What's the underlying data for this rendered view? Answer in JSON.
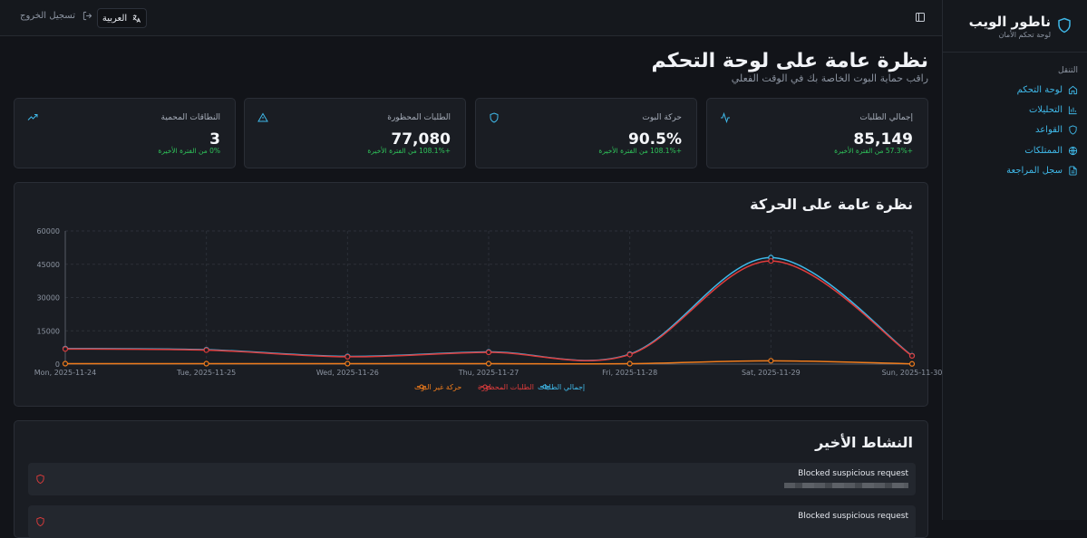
{
  "brand": {
    "title": "ناطور الويب",
    "subtitle": "لوحة تحكم الأمان"
  },
  "nav": {
    "heading": "التنقل",
    "items": [
      {
        "label": "لوحة التحكم",
        "icon": "home-icon"
      },
      {
        "label": "التحليلات",
        "icon": "chart-icon"
      },
      {
        "label": "القواعد",
        "icon": "shield-icon"
      },
      {
        "label": "الممتلكات",
        "icon": "globe-icon"
      },
      {
        "label": "سجل المراجعة",
        "icon": "file-icon"
      }
    ]
  },
  "topbar": {
    "logout_label": "تسجيل الخروج",
    "language_label": "العربية"
  },
  "header": {
    "title": "نظرة عامة على لوحة التحكم",
    "subtitle": "راقب حماية البوت الخاصة بك في الوقت الفعلي"
  },
  "cards": [
    {
      "label": "إجمالي الطلبات",
      "value": "85,149",
      "change": "+57.3% من الفترة الأخيرة",
      "icon": "activity-icon"
    },
    {
      "label": "حركة البوت",
      "value": "90.5%",
      "change": "+108.1% من الفترة الأخيرة",
      "icon": "shield-icon"
    },
    {
      "label": "الطلبات المحظورة",
      "value": "77,080",
      "change": "+108.1% من الفترة الأخيرة",
      "icon": "alert-triangle-icon"
    },
    {
      "label": "النطاقات المحمية",
      "value": "3",
      "change": "0% من الفترة الأخيرة",
      "icon": "trending-up-icon"
    }
  ],
  "traffic_panel": {
    "title": "نظرة عامة على الحركة"
  },
  "chart_data": {
    "type": "line",
    "x": [
      "Mon, 2025-11-24",
      "Tue, 2025-11-25",
      "Wed, 2025-11-26",
      "Thu, 2025-11-27",
      "Fri, 2025-11-28",
      "Sat, 2025-11-29",
      "Sun, 2025-11-30"
    ],
    "yticks": [
      0,
      15000,
      30000,
      45000,
      60000
    ],
    "ylim": [
      0,
      60000
    ],
    "grid": true,
    "legend": "bottom",
    "series": [
      {
        "name": "إجمالي الطلبات",
        "color": "#3fb8e8",
        "values": [
          7000,
          6500,
          3500,
          5500,
          4500,
          48000,
          3800
        ]
      },
      {
        "name": "الطلبات المحظورة",
        "color": "#e03c3c",
        "values": [
          6800,
          6300,
          3300,
          5300,
          4300,
          46500,
          3700
        ]
      },
      {
        "name": "حركة غير البوت",
        "color": "#f07c1c",
        "values": [
          200,
          200,
          200,
          200,
          200,
          1500,
          100
        ]
      }
    ]
  },
  "activity_panel": {
    "title": "النشاط الأخير",
    "items": [
      {
        "text": "Blocked suspicious request"
      },
      {
        "text": "Blocked suspicious request"
      }
    ]
  },
  "colors": {
    "accent": "#3fb8e8",
    "danger": "#e03c3c",
    "success": "#2fc35a",
    "warning": "#f07c1c"
  }
}
